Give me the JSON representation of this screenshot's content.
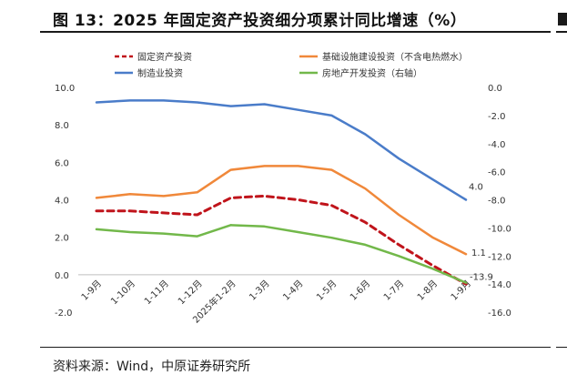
{
  "figure": {
    "title": "图 13：2025 年固定资产投资细分项累计同比增速（%）",
    "source": "资料来源：Wind，中原证券研究所"
  },
  "chart_data": {
    "type": "line",
    "categories": [
      "1-9月",
      "1-10月",
      "1-11月",
      "1-12月",
      "2025年1-2月",
      "1-3月",
      "1-4月",
      "1-5月",
      "1-6月",
      "1-7月",
      "1-8月",
      "1-9月"
    ],
    "left_axis": {
      "ylim": [
        -2.0,
        10.0
      ],
      "ticks": [
        "10.0",
        "8.0",
        "6.0",
        "4.0",
        "2.0",
        "0.0",
        "-2.0"
      ]
    },
    "right_axis": {
      "ylim": [
        -16.0,
        0.0
      ],
      "ticks": [
        "0.0",
        "-2.0",
        "-4.0",
        "-6.0",
        "-8.0",
        "-10.0",
        "-12.0",
        "-14.0",
        "-16.0"
      ]
    },
    "series": [
      {
        "name": "固定资产投资",
        "axis": "left",
        "color": "#c0141b",
        "dash": true,
        "values": [
          3.4,
          3.4,
          3.3,
          3.2,
          4.1,
          4.2,
          4.0,
          3.7,
          2.8,
          1.6,
          0.5,
          -0.5
        ],
        "end_label": ""
      },
      {
        "name": "基础设施建设投资（不含电热燃水）",
        "axis": "left",
        "color": "#f0883a",
        "dash": false,
        "values": [
          4.1,
          4.3,
          4.2,
          4.4,
          5.6,
          5.8,
          5.8,
          5.6,
          4.6,
          3.2,
          2.0,
          1.1
        ],
        "end_label": "1.1"
      },
      {
        "name": "制造业投资",
        "axis": "left",
        "color": "#4a7cc9",
        "dash": false,
        "values": [
          9.2,
          9.3,
          9.3,
          9.2,
          9.0,
          9.1,
          8.8,
          8.5,
          7.5,
          6.2,
          5.1,
          4.0
        ],
        "end_label": "4.0"
      },
      {
        "name": "房地产开发投资（右轴）",
        "axis": "right",
        "color": "#72b84a",
        "dash": false,
        "values": [
          -10.1,
          -10.3,
          -10.4,
          -10.6,
          -9.8,
          -9.9,
          -10.3,
          -10.7,
          -11.2,
          -12.0,
          -12.9,
          -13.9
        ],
        "end_label": "-13.9"
      }
    ]
  }
}
